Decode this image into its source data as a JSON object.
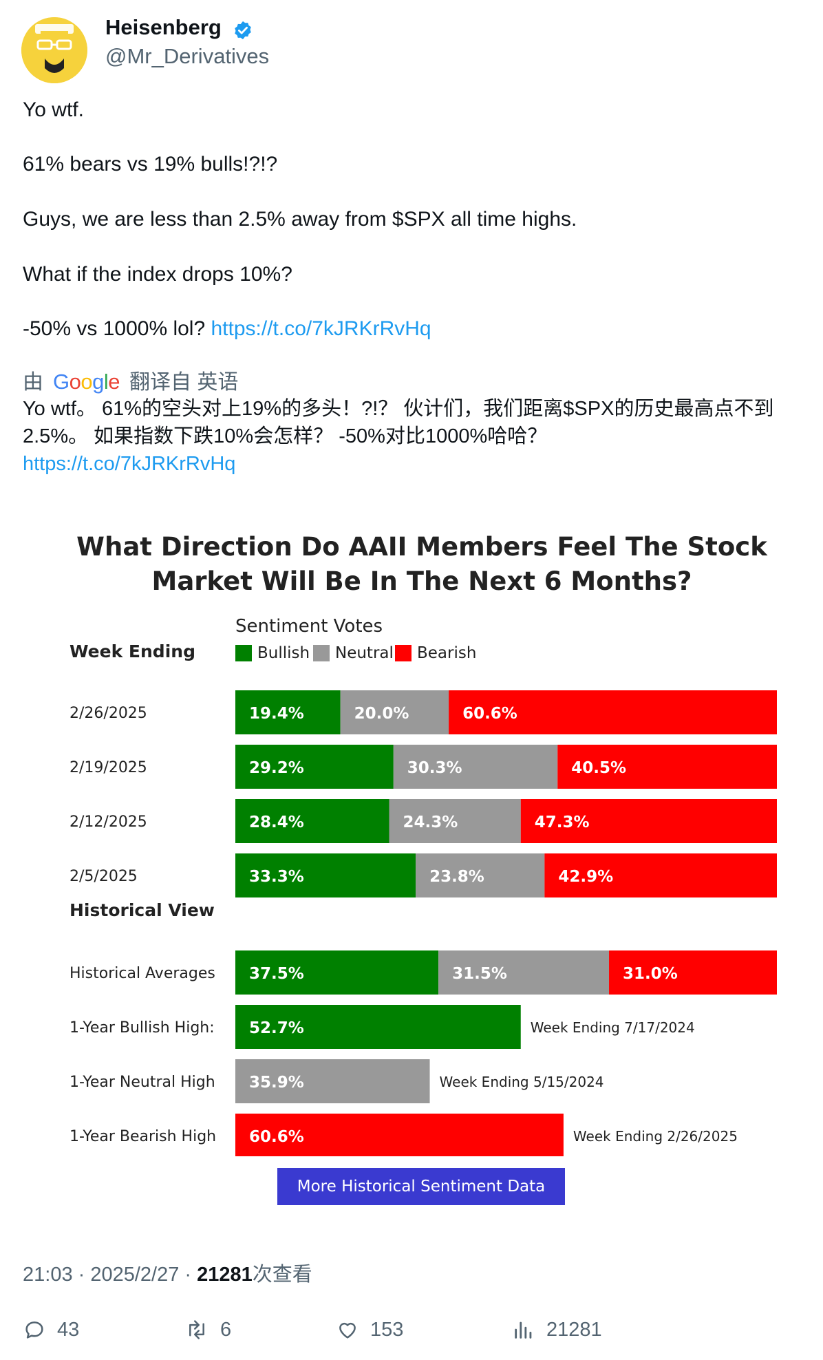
{
  "author": {
    "display_name": "Heisenberg",
    "handle": "@Mr_Derivatives",
    "verified_color": "#1d9bf0"
  },
  "tweet": {
    "lines": [
      "Yo wtf.",
      "61% bears vs 19% bulls!?!?",
      "Guys, we are less than 2.5% away from $SPX all time highs.",
      "What if the index drops 10%?",
      "-50% vs 1000% lol?"
    ],
    "link": "https://t.co/7kJRKrRvHq"
  },
  "translation": {
    "prefix": "由",
    "provider": "Google",
    "suffix": "翻译自 英语",
    "text": "Yo wtf。 61%的空头对上19%的多头！?!？ 伙计们，我们距离$SPX的历史最高点不到2.5%。 如果指数下跌10%会怎样？ -50%对比1000%哈哈？",
    "link": "https://t.co/7kJRKrRvHq"
  },
  "chart_data": {
    "type": "bar",
    "title": "What Direction Do AAII Members Feel The Stock Market Will Be In The Next 6 Months?",
    "legend_title": "Sentiment Votes",
    "row_header": "Week Ending",
    "series_names": [
      "Bullish",
      "Neutral",
      "Bearish"
    ],
    "colors": {
      "bullish": "#008000",
      "neutral": "#999999",
      "bearish": "#ff0000"
    },
    "weekly": [
      {
        "label": "2/26/2025",
        "values": [
          19.4,
          20.0,
          60.6
        ],
        "texts": [
          "19.4%",
          "20.0%",
          "60.6%"
        ]
      },
      {
        "label": "2/19/2025",
        "values": [
          29.2,
          30.3,
          40.5
        ],
        "texts": [
          "29.2%",
          "30.3%",
          "40.5%"
        ]
      },
      {
        "label": "2/12/2025",
        "values": [
          28.4,
          24.3,
          47.3
        ],
        "texts": [
          "28.4%",
          "24.3%",
          "47.3%"
        ]
      },
      {
        "label": "2/5/2025",
        "values": [
          33.3,
          23.8,
          42.9
        ],
        "texts": [
          "33.3%",
          "23.8%",
          "42.9%"
        ]
      }
    ],
    "historical_header": "Historical View",
    "historical": [
      {
        "label": "Historical Averages",
        "values": [
          37.5,
          31.5,
          31.0
        ],
        "texts": [
          "37.5%",
          "31.5%",
          "31.0%"
        ]
      }
    ],
    "highs": [
      {
        "label": "1-Year Bullish High:",
        "series": "bullish",
        "value": 52.7,
        "text": "52.7%",
        "note": "Week Ending 7/17/2024"
      },
      {
        "label": "1-Year Neutral High",
        "series": "neutral",
        "value": 35.9,
        "text": "35.9%",
        "note": "Week Ending 5/15/2024"
      },
      {
        "label": "1-Year Bearish High",
        "series": "bearish",
        "value": 60.6,
        "text": "60.6%",
        "note": "Week Ending 2/26/2025"
      }
    ],
    "button_label": "More Historical Sentiment Data"
  },
  "meta": {
    "time": "21:03 · 2025/2/27 · ",
    "views_count": "21281",
    "views_suffix": "次查看"
  },
  "actions": {
    "replies": "43",
    "retweets": "6",
    "likes": "153",
    "views": "21281"
  }
}
